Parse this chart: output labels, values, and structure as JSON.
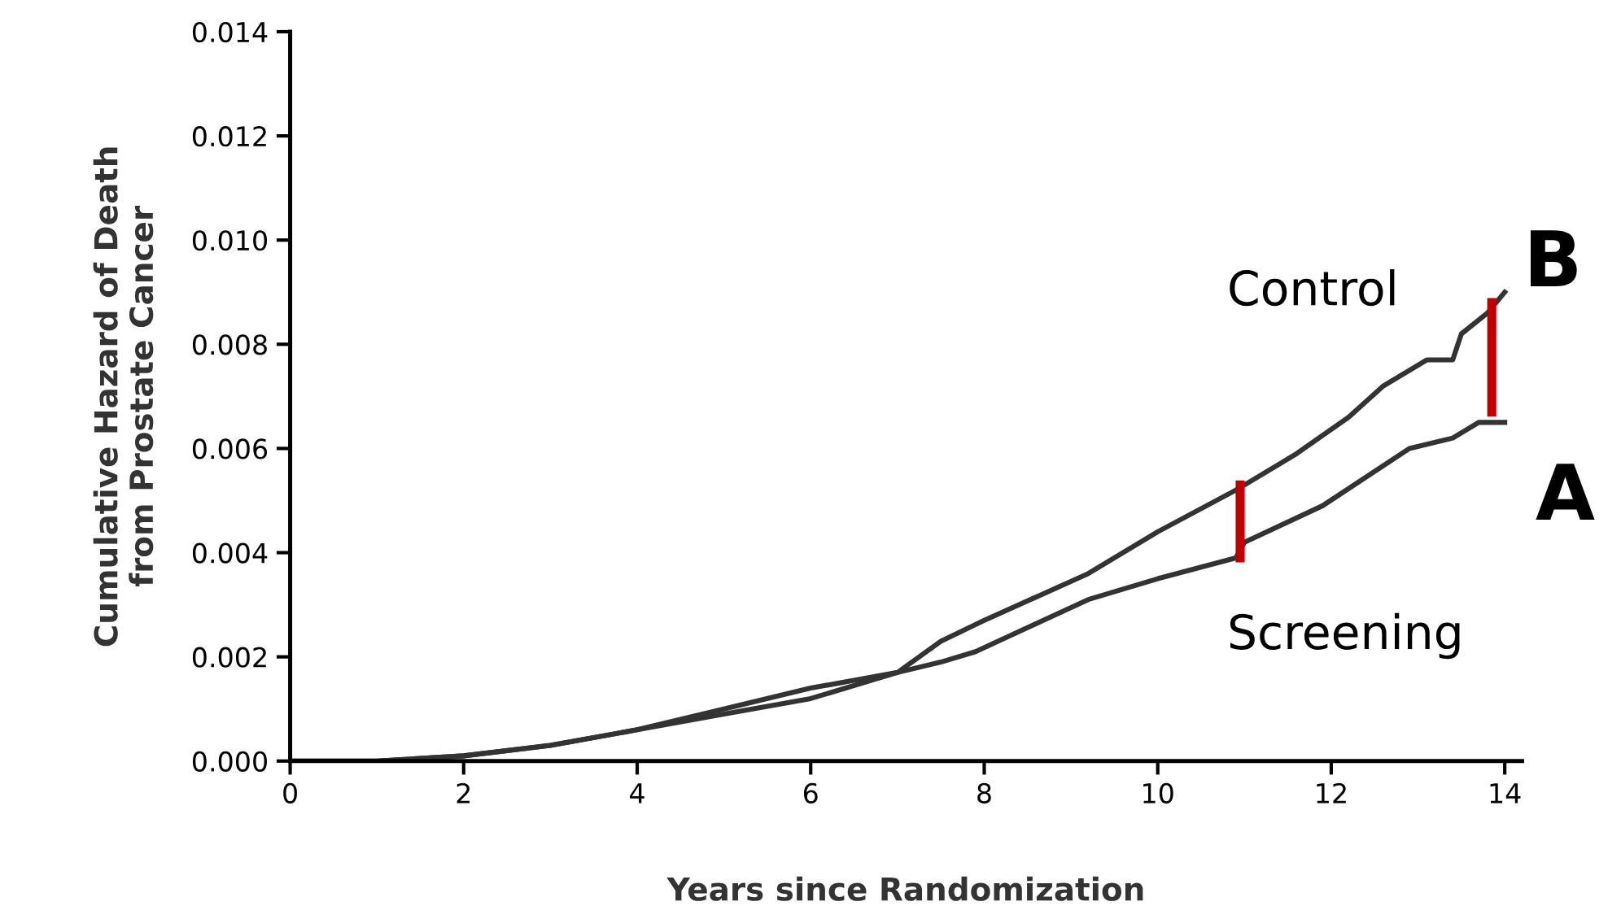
{
  "chart_data": {
    "type": "line",
    "xlabel": "Years since Randomization",
    "ylabel": "Cumulative Hazard of Death\nfrom Prostate Cancer",
    "xlim": [
      0,
      14.2
    ],
    "ylim": [
      0,
      0.014
    ],
    "xticks": [
      0,
      2,
      4,
      6,
      8,
      10,
      12,
      14
    ],
    "yticks": [
      {
        "value": 0,
        "label": "0.000"
      },
      {
        "value": 0.002,
        "label": "0.002"
      },
      {
        "value": 0.004,
        "label": "0.004"
      },
      {
        "value": 0.006,
        "label": "0.006"
      },
      {
        "value": 0.008,
        "label": "0.008"
      },
      {
        "value": 0.01,
        "label": "0.010"
      },
      {
        "value": 0.012,
        "label": "0.012"
      },
      {
        "value": 0.014,
        "label": "0.014"
      }
    ],
    "grid": false,
    "legend": false,
    "series": [
      {
        "name": "Control",
        "color": "#333333",
        "x": [
          0,
          1,
          2,
          3,
          4,
          5,
          6,
          7,
          7.5,
          8,
          9.2,
          10,
          10.9,
          11.6,
          12.2,
          12.6,
          13.1,
          13.4,
          13.5,
          13.8,
          14
        ],
        "values": [
          0,
          0,
          0.0001,
          0.0003,
          0.0006,
          0.001,
          0.0014,
          0.0017,
          0.0023,
          0.0027,
          0.0036,
          0.0044,
          0.0052,
          0.0059,
          0.0066,
          0.0072,
          0.0077,
          0.0077,
          0.0082,
          0.0086,
          0.009
        ]
      },
      {
        "name": "Screening",
        "color": "#333333",
        "x": [
          0,
          1,
          2,
          3,
          4,
          5,
          6,
          7,
          7.5,
          7.9,
          9.2,
          10,
          10.9,
          11,
          11.9,
          12.9,
          13.4,
          13.7,
          14
        ],
        "values": [
          0,
          0,
          0.0001,
          0.0003,
          0.0006,
          0.0009,
          0.0012,
          0.0017,
          0.0019,
          0.0021,
          0.0031,
          0.0035,
          0.0039,
          0.0042,
          0.0049,
          0.006,
          0.0062,
          0.0065,
          0.0065
        ]
      },
      {
        "color": "#c00000",
        "x": [
          10.95,
          10.95
        ],
        "values": [
          0.0039,
          0.0053
        ]
      },
      {
        "color": "#c00000",
        "x": [
          13.85,
          13.85
        ],
        "values": [
          0.0067,
          0.0088
        ]
      }
    ],
    "annotations": [
      "A",
      "B"
    ]
  }
}
